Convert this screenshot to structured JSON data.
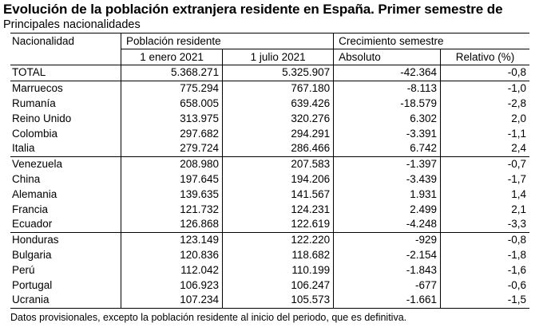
{
  "title": "Evolución de la población extranjera residente en España. Primer semestre de",
  "subtitle": "Principales nacionalidades",
  "headers": {
    "nationality": "Nacionalidad",
    "population": "Población residente",
    "growth": "Crecimiento semestre",
    "jan": "1 enero 2021",
    "jul": "1 julio 2021",
    "absolute": "Absoluto",
    "relative": "Relativo (%)"
  },
  "rows": [
    {
      "name": "TOTAL",
      "jan": "5.368.271",
      "jul": "5.325.907",
      "abs": "-42.364",
      "rel": "-0,8"
    },
    {
      "name": "Marruecos",
      "jan": "775.294",
      "jul": "767.180",
      "abs": "-8.113",
      "rel": "-1,0"
    },
    {
      "name": "Rumanía",
      "jan": "658.005",
      "jul": "639.426",
      "abs": "-18.579",
      "rel": "-2,8"
    },
    {
      "name": "Reino Unido",
      "jan": "313.975",
      "jul": "320.276",
      "abs": "6.302",
      "rel": "2,0"
    },
    {
      "name": "Colombia",
      "jan": "297.682",
      "jul": "294.291",
      "abs": "-3.391",
      "rel": "-1,1"
    },
    {
      "name": "Italia",
      "jan": "279.724",
      "jul": "286.466",
      "abs": "6.742",
      "rel": "2,4"
    },
    {
      "name": "Venezuela",
      "jan": "208.980",
      "jul": "207.583",
      "abs": "-1.397",
      "rel": "-0,7"
    },
    {
      "name": "China",
      "jan": "197.645",
      "jul": "194.206",
      "abs": "-3.439",
      "rel": "-1,7"
    },
    {
      "name": "Alemania",
      "jan": "139.635",
      "jul": "141.567",
      "abs": "1.931",
      "rel": "1,4"
    },
    {
      "name": "Francia",
      "jan": "121.732",
      "jul": "124.231",
      "abs": "2.499",
      "rel": "2,1"
    },
    {
      "name": "Ecuador",
      "jan": "126.868",
      "jul": "122.619",
      "abs": "-4.248",
      "rel": "-3,3"
    },
    {
      "name": "Honduras",
      "jan": "123.149",
      "jul": "122.220",
      "abs": "-929",
      "rel": "-0,8"
    },
    {
      "name": "Bulgaria",
      "jan": "120.836",
      "jul": "118.682",
      "abs": "-2.154",
      "rel": "-1,8"
    },
    {
      "name": "Perú",
      "jan": "112.042",
      "jul": "110.199",
      "abs": "-1.843",
      "rel": "-1,6"
    },
    {
      "name": "Portugal",
      "jan": "106.923",
      "jul": "106.247",
      "abs": "-677",
      "rel": "-0,6"
    },
    {
      "name": "Ucrania",
      "jan": "107.234",
      "jul": "105.573",
      "abs": "-1.661",
      "rel": "-1,5"
    }
  ],
  "footnote": "Datos provisionales, excepto la población residente al inicio del periodo, que es definitiva."
}
